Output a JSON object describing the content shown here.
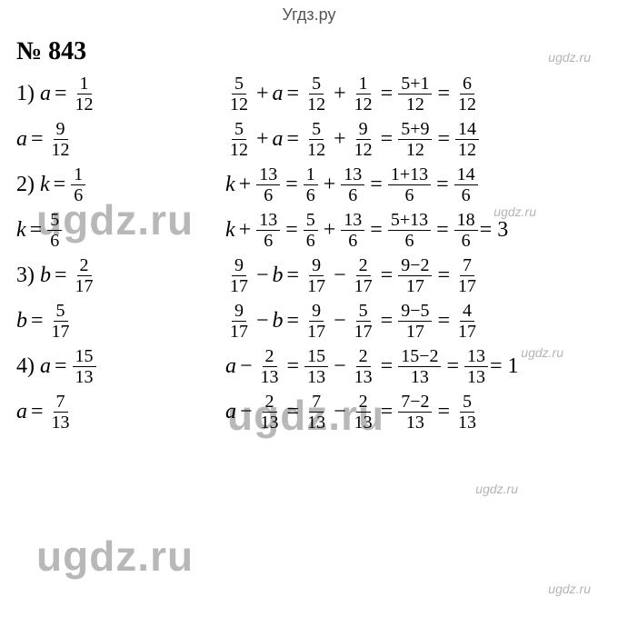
{
  "header": "Угдз.ру",
  "title": "№ 843",
  "watermarks": {
    "big": "ugdz.ru",
    "small": "ugdz.ru"
  },
  "problems": [
    {
      "num": "1)",
      "cases": [
        {
          "left_var": "a",
          "left_n": "1",
          "left_d": "12",
          "expr_a_n": "5",
          "expr_a_d": "12",
          "expr_op": "+",
          "expr_var": "a",
          "t1_n": "5",
          "t1_d": "12",
          "t2_n": "1",
          "t2_d": "12",
          "comb_n": "5+1",
          "comb_d": "12",
          "res_n": "6",
          "res_d": "12",
          "tail": ""
        },
        {
          "left_var": "a",
          "left_n": "9",
          "left_d": "12",
          "expr_a_n": "5",
          "expr_a_d": "12",
          "expr_op": "+",
          "expr_var": "a",
          "t1_n": "5",
          "t1_d": "12",
          "t2_n": "9",
          "t2_d": "12",
          "comb_n": "5+9",
          "comb_d": "12",
          "res_n": "14",
          "res_d": "12",
          "tail": ""
        }
      ]
    },
    {
      "num": "2)",
      "cases": [
        {
          "left_var": "k",
          "left_n": "1",
          "left_d": "6",
          "expr_var_first": "k",
          "expr_op": "+",
          "expr_b_n": "13",
          "expr_b_d": "6",
          "t1_n": "1",
          "t1_d": "6",
          "t2_n": "13",
          "t2_d": "6",
          "comb_n": "1+13",
          "comb_d": "6",
          "res_n": "14",
          "res_d": "6",
          "tail": ""
        },
        {
          "left_var": "k",
          "left_n": "5",
          "left_d": "6",
          "expr_var_first": "k",
          "expr_op": "+",
          "expr_b_n": "13",
          "expr_b_d": "6",
          "t1_n": "5",
          "t1_d": "6",
          "t2_n": "13",
          "t2_d": "6",
          "comb_n": "5+13",
          "comb_d": "6",
          "res_n": "18",
          "res_d": "6",
          "tail": " = 3"
        }
      ]
    },
    {
      "num": "3)",
      "cases": [
        {
          "left_var": "b",
          "left_n": "2",
          "left_d": "17",
          "expr_a_n": "9",
          "expr_a_d": "17",
          "expr_op": "−",
          "expr_var": "b",
          "t1_n": "9",
          "t1_d": "17",
          "t2_n": "2",
          "t2_d": "17",
          "comb_n": "9−2",
          "comb_d": "17",
          "res_n": "7",
          "res_d": "17",
          "tail": ""
        },
        {
          "left_var": "b",
          "left_n": "5",
          "left_d": "17",
          "expr_a_n": "9",
          "expr_a_d": "17",
          "expr_op": "−",
          "expr_var": "b",
          "t1_n": "9",
          "t1_d": "17",
          "t2_n": "5",
          "t2_d": "17",
          "comb_n": "9−5",
          "comb_d": "17",
          "res_n": "4",
          "res_d": "17",
          "tail": ""
        }
      ]
    },
    {
      "num": "4)",
      "cases": [
        {
          "left_var": "a",
          "left_n": "15",
          "left_d": "13",
          "expr_var_first": "a",
          "expr_op": "−",
          "expr_b_n": "2",
          "expr_b_d": "13",
          "t1_n": "15",
          "t1_d": "13",
          "t2_n": "2",
          "t2_d": "13",
          "comb_n": "15−2",
          "comb_d": "13",
          "res_n": "13",
          "res_d": "13",
          "tail": " = 1"
        },
        {
          "left_var": "a",
          "left_n": "7",
          "left_d": "13",
          "expr_var_first": "a",
          "expr_op": "−",
          "expr_b_n": "2",
          "expr_b_d": "13",
          "t1_n": "7",
          "t1_d": "13",
          "t2_n": "2",
          "t2_d": "13",
          "comb_n": "7−2",
          "comb_d": "13",
          "res_n": "5",
          "res_d": "13",
          "tail": ""
        }
      ]
    }
  ],
  "style": {
    "background_color": "#ffffff",
    "text_color": "#000000",
    "header_color": "#555555",
    "watermark_color": "rgba(0,0,0,0.28)",
    "title_fontsize": 28,
    "body_fontsize": 24,
    "frac_fontsize": 20,
    "font_family": "Times New Roman"
  }
}
